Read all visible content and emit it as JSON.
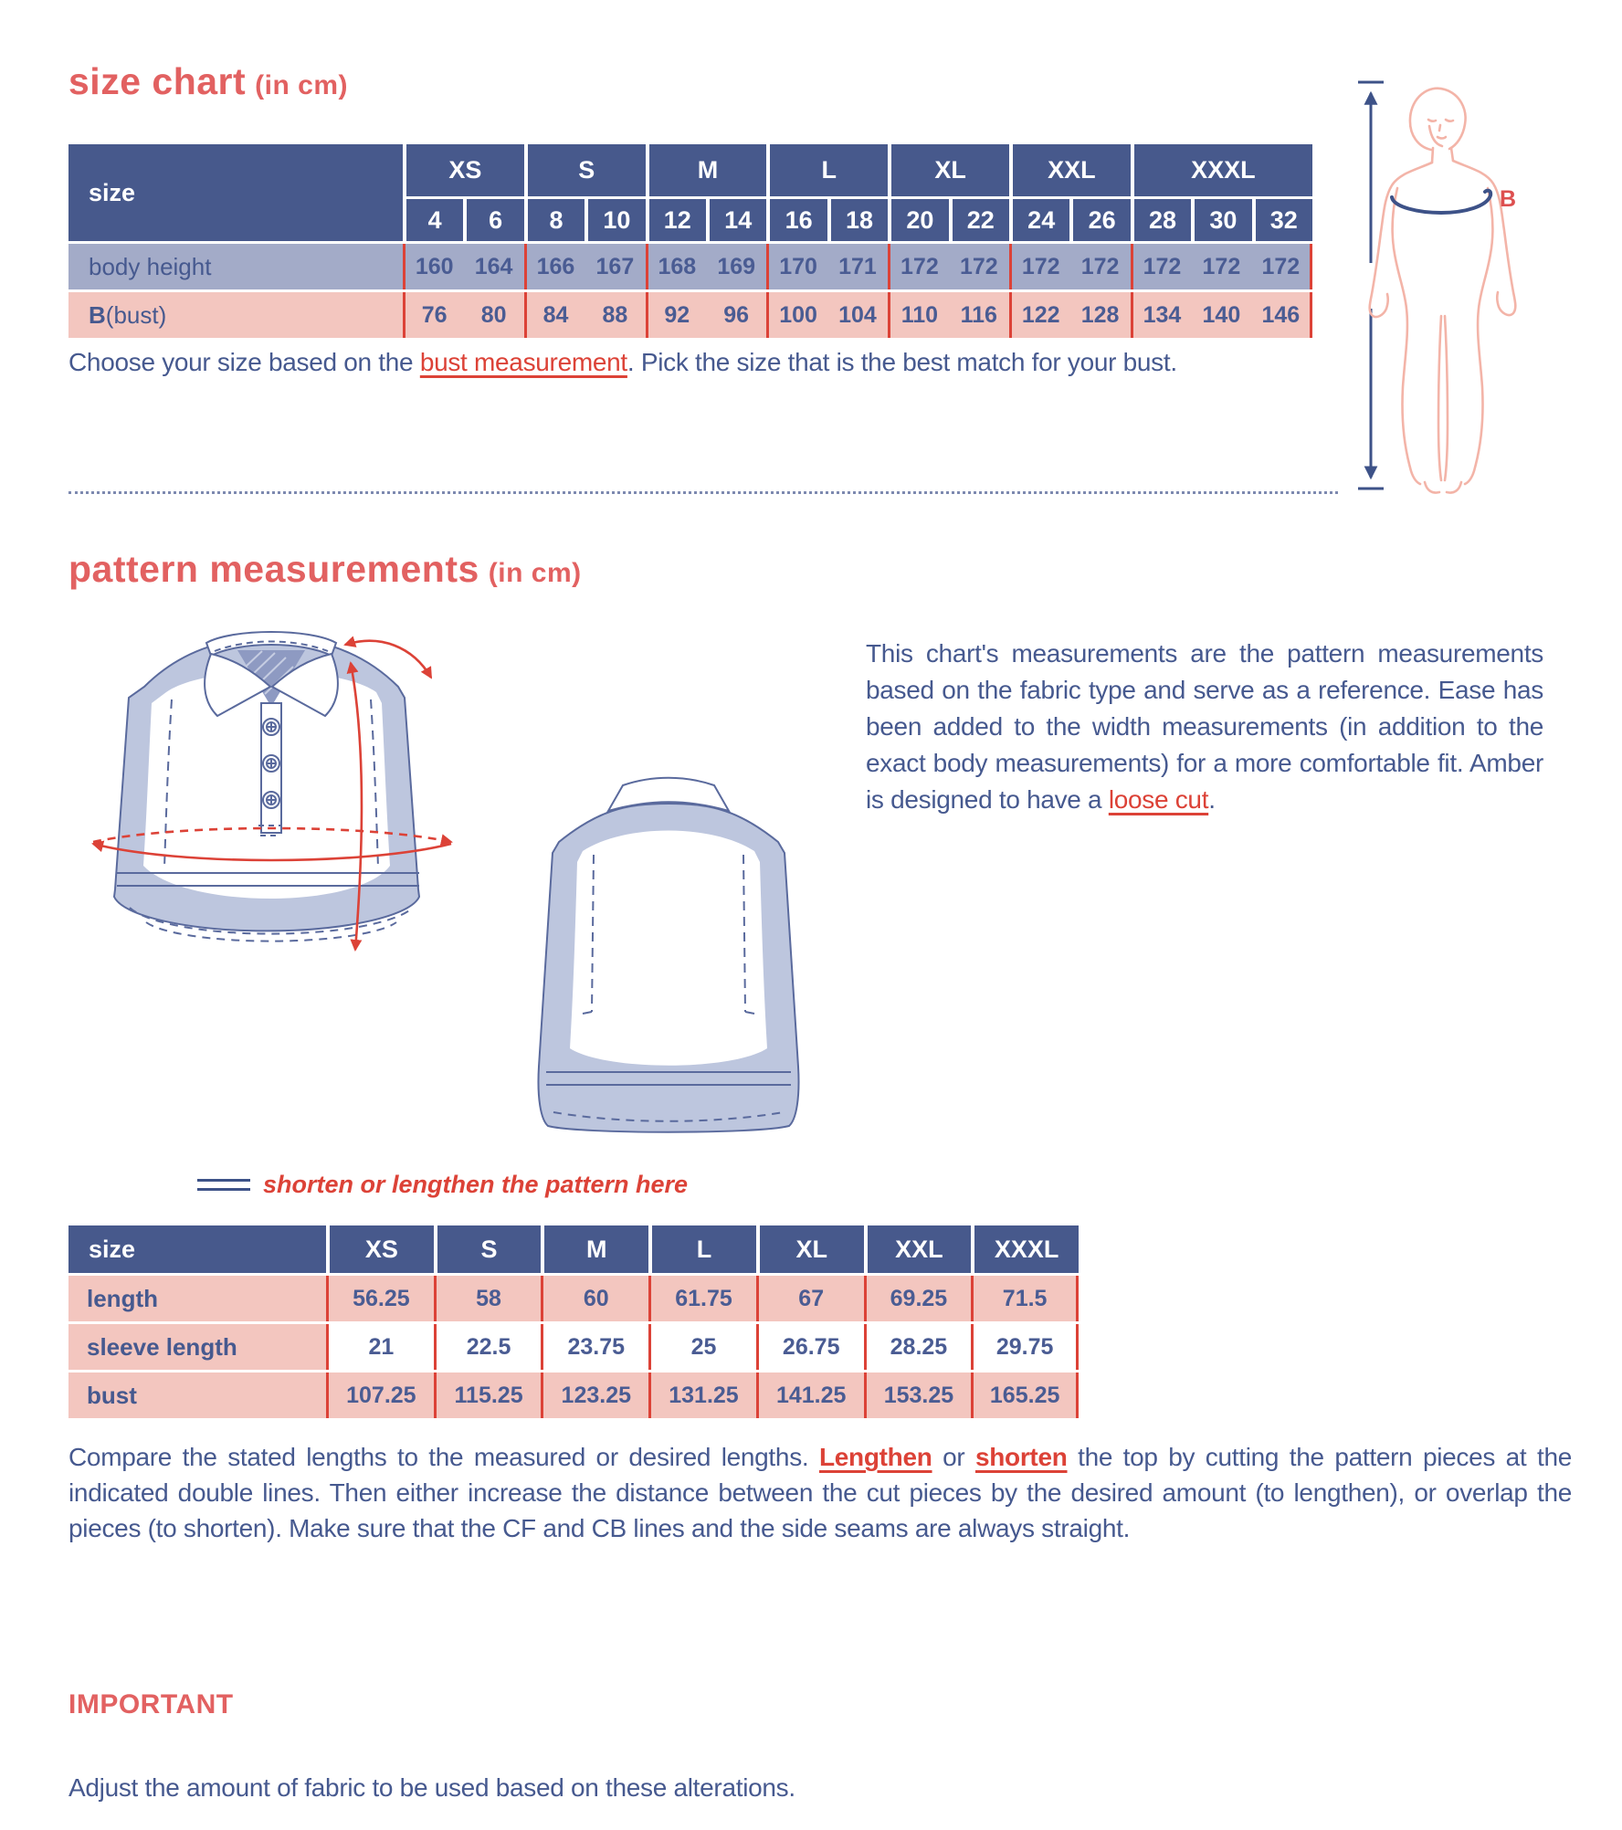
{
  "colors": {
    "accent_red": "#dc4237",
    "heading_coral": "#e26161",
    "header_blue": "#47598c",
    "row_gray": "#a3abc8",
    "row_pink": "#f3c6bf",
    "text_blue": "#46598f",
    "illus_fill": "#bdc6de",
    "illus_line": "#5a6a9d",
    "figure_pink": "#f3b4a8",
    "arrow_blue": "#3d5288"
  },
  "size_chart": {
    "title": "size chart",
    "title_suffix": "(in cm)",
    "table": {
      "corner_label": "size",
      "groups": [
        {
          "label": "XS",
          "sizes": [
            "4",
            "6"
          ]
        },
        {
          "label": "S",
          "sizes": [
            "8",
            "10"
          ]
        },
        {
          "label": "M",
          "sizes": [
            "12",
            "14"
          ]
        },
        {
          "label": "L",
          "sizes": [
            "16",
            "18"
          ]
        },
        {
          "label": "XL",
          "sizes": [
            "20",
            "22"
          ]
        },
        {
          "label": "XXL",
          "sizes": [
            "24",
            "26"
          ]
        },
        {
          "label": "XXXL",
          "sizes": [
            "28",
            "30",
            "32"
          ]
        }
      ],
      "rows": [
        {
          "variant": "gray",
          "label_parts": [
            {
              "t": "body height"
            }
          ],
          "values": [
            "160",
            "164",
            "166",
            "167",
            "168",
            "169",
            "170",
            "171",
            "172",
            "172",
            "172",
            "172",
            "172",
            "172",
            "172"
          ]
        },
        {
          "variant": "pink",
          "label_parts": [
            {
              "t": "B",
              "b": true
            },
            {
              "t": " (bust)"
            }
          ],
          "values": [
            "76",
            "80",
            "84",
            "88",
            "92",
            "96",
            "100",
            "104",
            "110",
            "116",
            "122",
            "128",
            "134",
            "140",
            "146"
          ]
        }
      ]
    },
    "note_parts": [
      {
        "t": "Choose your size based on the "
      },
      {
        "t": "bust measurement",
        "red": true
      },
      {
        "t": ". Pick the size that is the best match for your bust."
      }
    ],
    "figure_label": "B"
  },
  "pattern_measurements": {
    "title": "pattern measurements",
    "title_suffix": "(in cm)",
    "description_parts": [
      {
        "t": "This chart's measurements are the pattern measurements based on the fabric type and serve as a reference. Ease has been added to the width measurements (in addition to the exact body measurements) for a more comfortable fit. Amber is designed to have a "
      },
      {
        "t": "loose cut",
        "red": true
      },
      {
        "t": "."
      }
    ],
    "legend_label": "shorten or lengthen the pattern here",
    "table": {
      "corner_label": "size",
      "columns": [
        "XS",
        "S",
        "M",
        "L",
        "XL",
        "XXL",
        "XXXL"
      ],
      "rows": [
        {
          "label": "length",
          "shaded": true,
          "values": [
            "56.25",
            "58",
            "60",
            "61.75",
            "67",
            "69.25",
            "71.5"
          ]
        },
        {
          "label": "sleeve length",
          "shaded": false,
          "values": [
            "21",
            "22.5",
            "23.75",
            "25",
            "26.75",
            "28.25",
            "29.75"
          ]
        },
        {
          "label": "bust",
          "shaded": true,
          "values": [
            "107.25",
            "115.25",
            "123.25",
            "131.25",
            "141.25",
            "153.25",
            "165.25"
          ]
        }
      ]
    },
    "instructions_parts": [
      {
        "t": "Compare the stated lengths to the measured or desired lengths. "
      },
      {
        "t": "Lengthen",
        "red": true,
        "b": true
      },
      {
        "t": " or "
      },
      {
        "t": "shorten",
        "red": true,
        "b": true
      },
      {
        "t": " the top by cutting the pattern pieces at the indicated double lines. Then either increase the distance between the cut pieces by the desired amount (to lengthen), or overlap the pieces (to shorten). Make sure that the CF and CB lines and the side seams are always straight."
      }
    ],
    "important_title": "IMPORTANT",
    "important_text": "Adjust the amount of fabric to be used based on these alterations."
  }
}
